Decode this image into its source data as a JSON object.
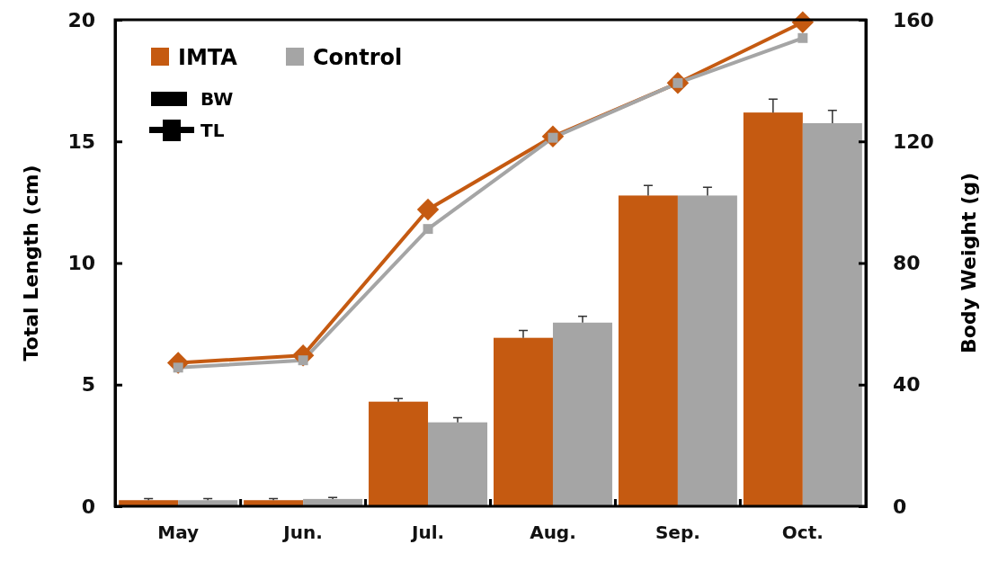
{
  "chart_data": {
    "type": "bar",
    "xlabel": null,
    "ylabel": "Total Length (cm)",
    "y2label": "Body Weight (g)",
    "categories": [
      "May",
      "Jun.",
      "Jul.",
      "Aug.",
      "Sep.",
      "Oct."
    ],
    "series": [
      {
        "name": "IMTA",
        "axis": "y2",
        "color": "#c55a11",
        "values": [
          2,
          2,
          34.4,
          55.4,
          102.2,
          129.5
        ],
        "errors": [
          0.5,
          0.5,
          1,
          2.4,
          3.3,
          4.4
        ]
      },
      {
        "name": "Control",
        "axis": "y2",
        "color": "#a5a5a5",
        "values": [
          2,
          2.4,
          27.6,
          60.4,
          102.2,
          126
        ],
        "errors": [
          0.5,
          0.5,
          1.5,
          2.1,
          2.7,
          4.2
        ]
      },
      {
        "type": "line",
        "axis": "y",
        "color": "#c55a11",
        "marker": "diamond",
        "values": [
          5.9,
          6.2,
          12.2,
          15.2,
          17.4,
          19.9
        ]
      },
      {
        "type": "line",
        "axis": "y",
        "color": "#a5a5a5",
        "marker": "square",
        "values": [
          5.7,
          6.0,
          11.4,
          15.15,
          17.4,
          19.25
        ]
      }
    ],
    "ylim": [
      0,
      20
    ],
    "yticks": [
      0,
      5,
      10,
      15,
      20
    ],
    "y2lim": [
      0,
      160
    ],
    "y2ticks": [
      0,
      40,
      80,
      120,
      160
    ],
    "annotations": [
      "BW",
      "TL"
    ],
    "legend": "top left",
    "grid": false
  }
}
